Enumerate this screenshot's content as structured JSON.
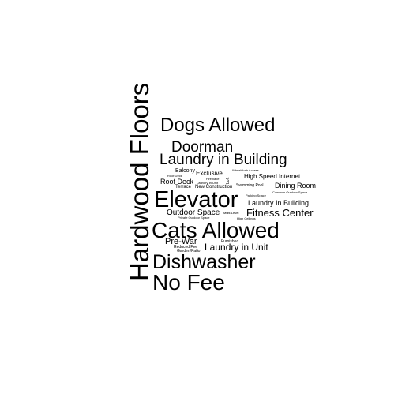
{
  "cloud": {
    "text_color": "#000000",
    "background_color": "#ffffff",
    "words": [
      "Hardwood Floors",
      "Dogs Allowed",
      "Doorman",
      "Laundry in Building",
      "Balcony",
      "Exclusive",
      "Roof Deck",
      "Terrace",
      "New Construction",
      "High Speed Internet",
      "Swimming Pool",
      "Dining Room",
      "Elevator",
      "Laundry In Building",
      "Fitness Center",
      "Outdoor Space",
      "Cats Allowed",
      "Pre-War",
      "Furnished",
      "Laundry in Unit",
      "Reduced Fee",
      "Garden/Patio",
      "Dishwasher",
      "No Fee",
      "Wheelchair Access",
      "Common Outdoor Space",
      "Parking Space",
      "High Ceilings",
      "Multi-Level",
      "Private Outdoor Space",
      "Fireplace",
      "Laundry In Unit",
      "Roof Deck",
      "Loft"
    ]
  }
}
